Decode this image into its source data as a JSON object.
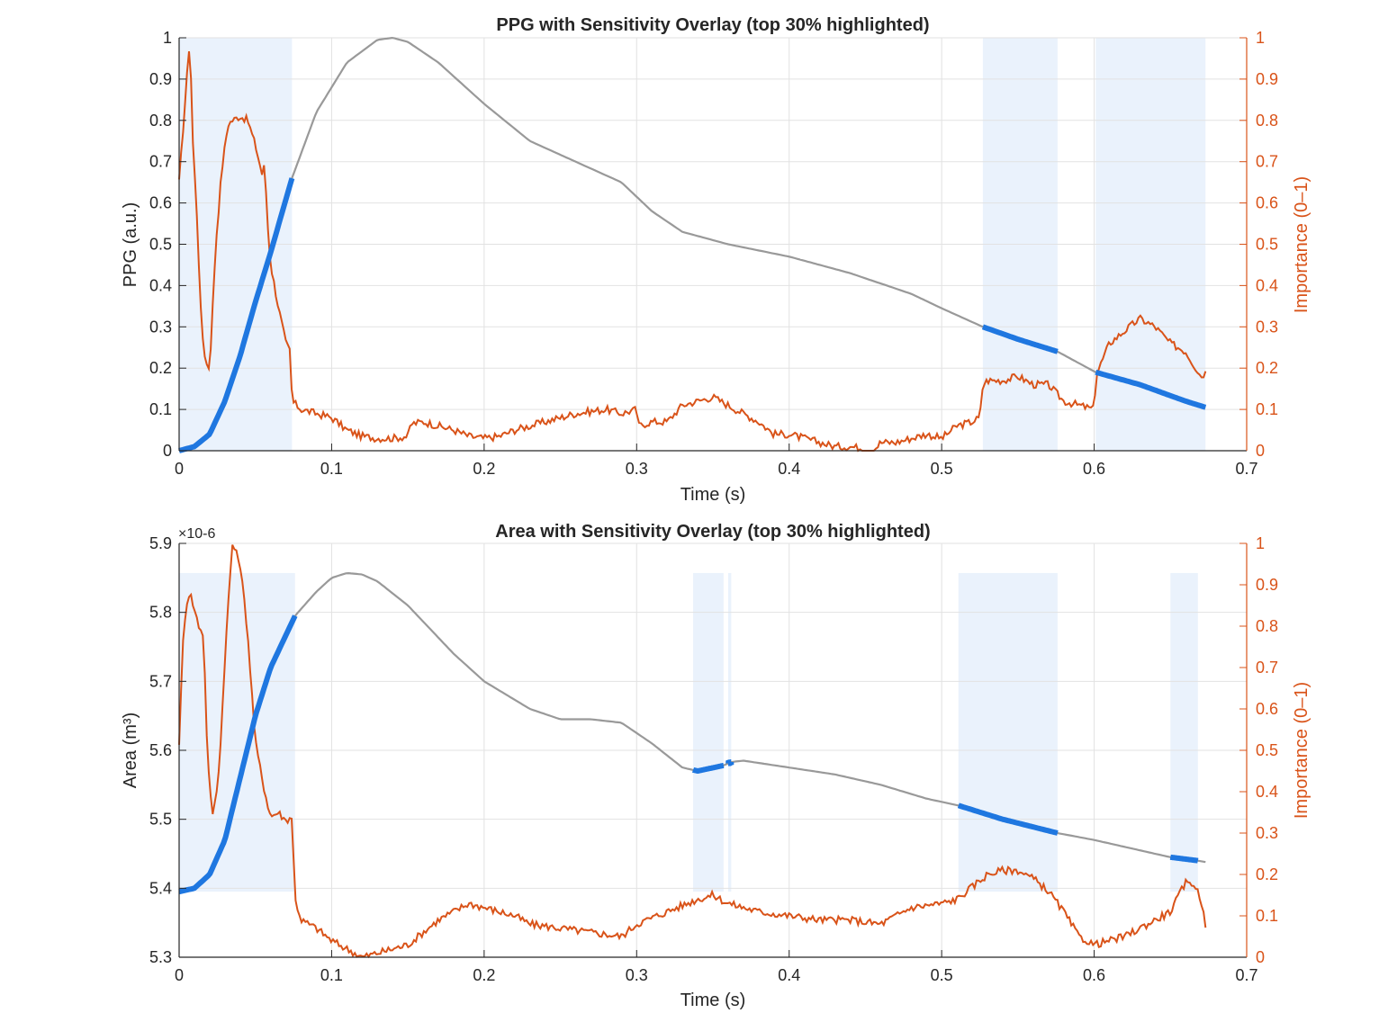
{
  "colors": {
    "signal": "#999999",
    "highlight": "#1F77E0",
    "importance": "#D95319",
    "shade": "#EAF2FC",
    "grid": "#E2E2E2",
    "axis": "#262626"
  },
  "chart_data": [
    {
      "type": "line",
      "title": "PPG with Sensitivity Overlay (top 30% highlighted)",
      "xlabel": "Time (s)",
      "ylabel": "PPG (a.u.)",
      "ylabel_right": "Importance (0–1)",
      "xlim": [
        0,
        0.7
      ],
      "ylim": [
        0,
        1
      ],
      "ylim_right": [
        0,
        1
      ],
      "xticks": [
        "0",
        "0.1",
        "0.2",
        "0.3",
        "0.4",
        "0.5",
        "0.6",
        "0.7"
      ],
      "yticks": [
        "0",
        "0.1",
        "0.2",
        "0.3",
        "0.4",
        "0.5",
        "0.6",
        "0.7",
        "0.8",
        "0.9",
        "1"
      ],
      "yticks_right": [
        "0",
        "0.1",
        "0.2",
        "0.3",
        "0.4",
        "0.5",
        "0.6",
        "0.7",
        "0.8",
        "0.9",
        "1"
      ],
      "grid": true,
      "highlight_regions": [
        [
          0,
          0.074
        ],
        [
          0.527,
          0.576
        ],
        [
          0.601,
          0.673
        ]
      ],
      "signal": {
        "x": [
          0,
          0.01,
          0.02,
          0.03,
          0.04,
          0.05,
          0.06,
          0.074,
          0.09,
          0.11,
          0.13,
          0.14,
          0.15,
          0.17,
          0.2,
          0.23,
          0.26,
          0.29,
          0.31,
          0.33,
          0.36,
          0.4,
          0.44,
          0.48,
          0.5,
          0.527,
          0.55,
          0.576,
          0.601,
          0.63,
          0.66,
          0.673
        ],
        "y": [
          0.0,
          0.01,
          0.04,
          0.12,
          0.23,
          0.36,
          0.48,
          0.66,
          0.82,
          0.94,
          0.995,
          1.0,
          0.99,
          0.94,
          0.84,
          0.75,
          0.7,
          0.65,
          0.58,
          0.53,
          0.5,
          0.47,
          0.43,
          0.38,
          0.345,
          0.3,
          0.27,
          0.24,
          0.19,
          0.16,
          0.12,
          0.105
        ]
      },
      "importance": {
        "x": [
          0,
          0.004,
          0.007,
          0.009,
          0.012,
          0.014,
          0.016,
          0.018,
          0.02,
          0.022,
          0.024,
          0.028,
          0.032,
          0.035,
          0.04,
          0.045,
          0.05,
          0.055,
          0.056,
          0.058,
          0.06,
          0.065,
          0.07,
          0.073,
          0.074,
          0.08,
          0.09,
          0.1,
          0.11,
          0.12,
          0.13,
          0.14,
          0.15,
          0.152,
          0.16,
          0.17,
          0.18,
          0.19,
          0.2,
          0.21,
          0.22,
          0.24,
          0.26,
          0.28,
          0.29,
          0.3,
          0.301,
          0.31,
          0.32,
          0.33,
          0.34,
          0.35,
          0.36,
          0.37,
          0.38,
          0.39,
          0.4,
          0.41,
          0.42,
          0.43,
          0.44,
          0.45,
          0.455,
          0.46,
          0.47,
          0.48,
          0.49,
          0.5,
          0.51,
          0.52,
          0.525,
          0.527,
          0.53,
          0.54,
          0.55,
          0.56,
          0.57,
          0.58,
          0.59,
          0.6,
          0.601,
          0.61,
          0.62,
          0.63,
          0.64,
          0.65,
          0.66,
          0.67,
          0.673
        ],
        "y": [
          0.65,
          0.85,
          1.0,
          0.75,
          0.55,
          0.35,
          0.25,
          0.21,
          0.2,
          0.35,
          0.5,
          0.68,
          0.79,
          0.8,
          0.81,
          0.8,
          0.74,
          0.66,
          0.7,
          0.55,
          0.45,
          0.35,
          0.26,
          0.24,
          0.12,
          0.1,
          0.09,
          0.08,
          0.05,
          0.035,
          0.03,
          0.03,
          0.035,
          0.065,
          0.07,
          0.06,
          0.05,
          0.035,
          0.03,
          0.035,
          0.05,
          0.07,
          0.09,
          0.1,
          0.09,
          0.1,
          0.06,
          0.07,
          0.07,
          0.11,
          0.12,
          0.13,
          0.11,
          0.09,
          0.07,
          0.04,
          0.04,
          0.03,
          0.02,
          0.01,
          0.01,
          0.005,
          0.0,
          0.02,
          0.02,
          0.03,
          0.04,
          0.03,
          0.06,
          0.07,
          0.08,
          0.16,
          0.17,
          0.17,
          0.18,
          0.16,
          0.16,
          0.12,
          0.11,
          0.1,
          0.18,
          0.26,
          0.29,
          0.32,
          0.3,
          0.26,
          0.24,
          0.18,
          0.19
        ]
      }
    },
    {
      "type": "line",
      "title": "Area with Sensitivity Overlay (top 30% highlighted)",
      "xlabel": "Time (s)",
      "ylabel": "Area  (m³)",
      "ylabel_right": "Importance (0–1)",
      "y_exponent": "×10-6",
      "xlim": [
        0,
        0.7
      ],
      "ylim": [
        5.3,
        5.9
      ],
      "ylim_right": [
        0,
        1
      ],
      "xticks": [
        "0",
        "0.1",
        "0.2",
        "0.3",
        "0.4",
        "0.5",
        "0.6",
        "0.7"
      ],
      "yticks": [
        "5.3",
        "5.4",
        "5.5",
        "5.6",
        "5.7",
        "5.8",
        "5.9"
      ],
      "yticks_right": [
        "0",
        "0.1",
        "0.2",
        "0.3",
        "0.4",
        "0.5",
        "0.6",
        "0.7",
        "0.8",
        "0.9",
        "1"
      ],
      "grid": true,
      "highlight_regions": [
        [
          0,
          0.076
        ],
        [
          0.337,
          0.357
        ],
        [
          0.36,
          0.362
        ],
        [
          0.511,
          0.576
        ],
        [
          0.65,
          0.668
        ]
      ],
      "signal": {
        "x": [
          0,
          0.01,
          0.02,
          0.03,
          0.04,
          0.05,
          0.06,
          0.076,
          0.09,
          0.1,
          0.11,
          0.12,
          0.13,
          0.15,
          0.18,
          0.2,
          0.23,
          0.25,
          0.27,
          0.29,
          0.31,
          0.33,
          0.34,
          0.357,
          0.362,
          0.37,
          0.4,
          0.43,
          0.46,
          0.49,
          0.511,
          0.54,
          0.576,
          0.6,
          0.65,
          0.668,
          0.673
        ],
        "y": [
          5.395,
          5.4,
          5.42,
          5.47,
          5.56,
          5.65,
          5.72,
          5.795,
          5.83,
          5.85,
          5.857,
          5.855,
          5.845,
          5.81,
          5.74,
          5.7,
          5.66,
          5.645,
          5.645,
          5.64,
          5.61,
          5.575,
          5.57,
          5.578,
          5.583,
          5.585,
          5.575,
          5.565,
          5.55,
          5.53,
          5.52,
          5.5,
          5.48,
          5.47,
          5.445,
          5.44,
          5.438
        ]
      },
      "importance": {
        "x": [
          0,
          0.003,
          0.006,
          0.008,
          0.01,
          0.013,
          0.016,
          0.018,
          0.02,
          0.022,
          0.024,
          0.027,
          0.03,
          0.033,
          0.035,
          0.037,
          0.04,
          0.043,
          0.045,
          0.05,
          0.055,
          0.058,
          0.06,
          0.065,
          0.07,
          0.074,
          0.076,
          0.08,
          0.09,
          0.1,
          0.11,
          0.12,
          0.13,
          0.15,
          0.17,
          0.19,
          0.2,
          0.21,
          0.22,
          0.23,
          0.25,
          0.27,
          0.29,
          0.3,
          0.32,
          0.34,
          0.35,
          0.36,
          0.37,
          0.38,
          0.4,
          0.42,
          0.44,
          0.46,
          0.48,
          0.5,
          0.51,
          0.52,
          0.53,
          0.54,
          0.55,
          0.56,
          0.57,
          0.58,
          0.59,
          0.6,
          0.61,
          0.62,
          0.63,
          0.64,
          0.65,
          0.66,
          0.665,
          0.67,
          0.673
        ],
        "y": [
          0.52,
          0.8,
          0.88,
          0.87,
          0.84,
          0.8,
          0.78,
          0.55,
          0.4,
          0.35,
          0.38,
          0.5,
          0.72,
          0.9,
          1.0,
          0.98,
          0.95,
          0.85,
          0.78,
          0.52,
          0.42,
          0.37,
          0.34,
          0.35,
          0.33,
          0.34,
          0.14,
          0.09,
          0.07,
          0.04,
          0.02,
          0.0,
          0.01,
          0.03,
          0.09,
          0.13,
          0.12,
          0.11,
          0.1,
          0.08,
          0.07,
          0.06,
          0.05,
          0.08,
          0.11,
          0.14,
          0.15,
          0.13,
          0.12,
          0.11,
          0.1,
          0.09,
          0.09,
          0.08,
          0.12,
          0.13,
          0.14,
          0.17,
          0.2,
          0.21,
          0.21,
          0.19,
          0.16,
          0.11,
          0.05,
          0.03,
          0.04,
          0.05,
          0.07,
          0.09,
          0.11,
          0.18,
          0.18,
          0.14,
          0.08
        ]
      }
    }
  ]
}
